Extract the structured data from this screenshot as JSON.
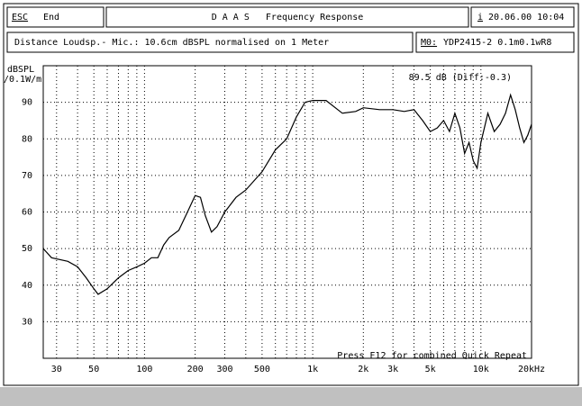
{
  "ui": {
    "esc": "ESC",
    "end": "End",
    "info": "i",
    "datetime": "20.06.00 10:04",
    "subtitle": "Distance Loudsp.- Mic.: 10.6cm dBSPL normalised on 1 Meter",
    "model_key": "M0:",
    "model": "YDP2415-2 0.1m0.1wR8"
  },
  "chart_data": {
    "type": "line",
    "title": "D A A S   Frequency Response",
    "y_label_1": "dBSPL",
    "y_label_2": "/0.1W/m",
    "annotation": "89.5 dB (Diff:-0.3)",
    "footer": "Press F12 for combined Quick Repeat",
    "x_scale": "log",
    "grid": true,
    "color": "#000000",
    "xlim": [
      25,
      20000
    ],
    "ylim": [
      20,
      100
    ],
    "xticks": [
      30,
      50,
      100,
      200,
      300,
      500,
      {
        "value": 1000,
        "label": "1k"
      },
      {
        "value": 2000,
        "label": "2k"
      },
      {
        "value": 3000,
        "label": "3k"
      },
      {
        "value": 5000,
        "label": "5k"
      },
      {
        "value": 10000,
        "label": "10k"
      },
      {
        "value": 20000,
        "label": "20kHz"
      }
    ],
    "x_minor_grid": [
      40,
      60,
      70,
      80,
      90,
      400,
      600,
      700,
      800,
      900,
      4000,
      6000,
      7000,
      8000,
      9000
    ],
    "yticks": [
      30,
      40,
      50,
      60,
      70,
      80,
      90
    ],
    "series": [
      {
        "name": "YDP2415-2",
        "color": "#000000",
        "x": [
          25,
          28,
          35,
          40,
          45,
          50,
          53,
          60,
          70,
          80,
          90,
          100,
          110,
          120,
          130,
          140,
          160,
          180,
          200,
          215,
          230,
          250,
          270,
          300,
          350,
          400,
          500,
          600,
          700,
          800,
          900,
          1000,
          1200,
          1500,
          1800,
          2000,
          2500,
          3000,
          3500,
          4000,
          4500,
          5000,
          5500,
          6000,
          6500,
          7000,
          7500,
          8000,
          8500,
          9000,
          9500,
          10000,
          11000,
          12000,
          13000,
          14000,
          15000,
          16000,
          17000,
          18000,
          19000,
          20000
        ],
        "values": [
          50,
          47.5,
          46.5,
          45,
          42,
          39,
          37.5,
          39,
          42,
          44,
          45,
          46,
          47.5,
          47.5,
          51,
          53,
          55,
          60,
          64.5,
          64,
          59,
          54.5,
          56,
          60,
          64,
          66,
          71,
          77,
          80,
          86,
          90,
          90.5,
          90.5,
          87,
          87.5,
          88.5,
          88,
          88,
          87.5,
          88,
          85,
          82,
          83,
          85,
          82,
          87,
          83,
          76,
          79,
          74,
          72,
          79,
          87,
          82,
          84,
          87,
          92,
          88,
          83,
          79,
          81,
          84
        ]
      }
    ]
  }
}
